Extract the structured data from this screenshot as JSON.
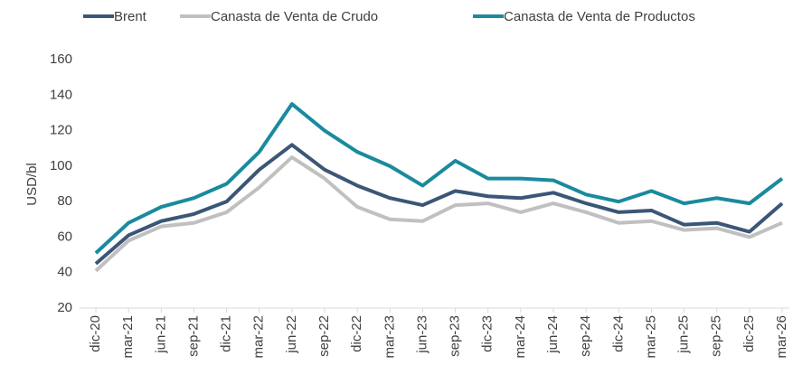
{
  "chart_data": {
    "type": "line",
    "y_label": "USD/bl",
    "categories": [
      "dic-20",
      "mar-21",
      "jun-21",
      "sep-21",
      "dic-21",
      "mar-22",
      "jun-22",
      "sep-22",
      "dic-22",
      "mar-23",
      "jun-23",
      "sep-23",
      "dic-23",
      "mar-24",
      "jun-24",
      "sep-24",
      "dic-24",
      "mar-25",
      "jun-25",
      "sep-25",
      "dic-25",
      "mar-26"
    ],
    "series": [
      {
        "name": "Brent",
        "color": "#3b5676",
        "values": [
          45,
          61,
          69,
          73,
          80,
          98,
          112,
          98,
          89,
          82,
          78,
          86,
          83,
          82,
          85,
          79,
          74,
          75,
          67,
          68,
          63,
          79
        ]
      },
      {
        "name": "Canasta de Venta de Crudo",
        "color": "#c0c0c0",
        "values": [
          41,
          58,
          66,
          68,
          74,
          88,
          105,
          93,
          77,
          70,
          69,
          78,
          79,
          74,
          79,
          74,
          68,
          69,
          64,
          65,
          60,
          68
        ]
      },
      {
        "name": "Canasta de Venta de Productos",
        "color": "#1a8a9e",
        "values": [
          51,
          68,
          77,
          82,
          90,
          108,
          135,
          120,
          108,
          100,
          89,
          103,
          93,
          93,
          92,
          84,
          80,
          86,
          79,
          82,
          79,
          93
        ]
      }
    ],
    "ylim": [
      20,
      160
    ],
    "yticks": [
      20,
      40,
      60,
      80,
      100,
      120,
      140,
      160
    ]
  }
}
